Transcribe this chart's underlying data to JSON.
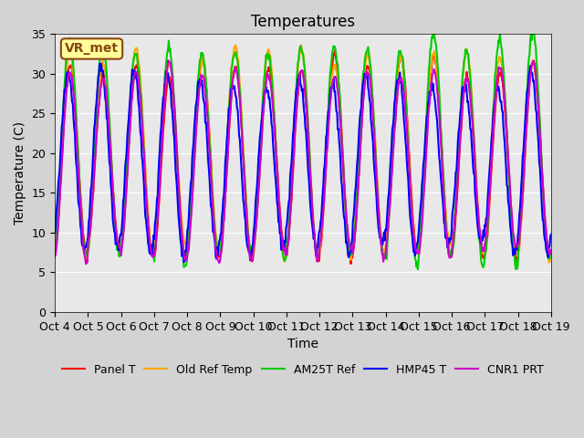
{
  "title": "Temperatures",
  "xlabel": "Time",
  "ylabel": "Temperature (C)",
  "ylim": [
    0,
    35
  ],
  "n_days": 15,
  "x_tick_labels": [
    "Oct 4",
    "Oct 5",
    "Oct 6",
    "Oct 7",
    "Oct 8",
    "Oct 9",
    "Oct 10",
    "Oct 11",
    "Oct 12",
    "Oct 13",
    "Oct 14",
    "Oct 15",
    "Oct 16",
    "Oct 17",
    "Oct 18",
    "Oct 19"
  ],
  "legend_labels": [
    "Panel T",
    "Old Ref Temp",
    "AM25T Ref",
    "HMP45 T",
    "CNR1 PRT"
  ],
  "line_colors": [
    "#ff0000",
    "#ffa500",
    "#00cc00",
    "#0000ff",
    "#cc00cc"
  ],
  "line_widths": [
    1.5,
    1.5,
    1.5,
    1.5,
    1.5
  ],
  "bg_color": "#d3d3d3",
  "plot_bg_color": "#e8e8e8",
  "annotation_text": "VR_met",
  "annotation_bg": "#ffff99",
  "annotation_edge": "#8b4513",
  "title_fontsize": 12,
  "label_fontsize": 10,
  "tick_fontsize": 9,
  "samples_per_day": 48
}
